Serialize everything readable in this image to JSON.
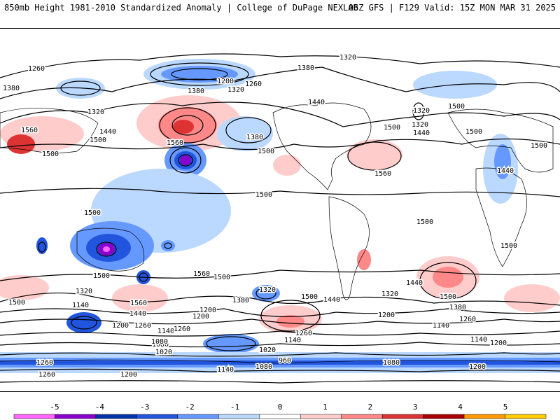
{
  "header": {
    "title": "850mb Height 1981-2010 Standardized Anomaly | College of DuPage NEXLAB",
    "run_info": "06Z GFS | F129 Valid: 15Z MON MAR 31 2025"
  },
  "contour_labels": [
    "1320",
    "1260",
    "1380",
    "1200",
    "1320",
    "1260",
    "1380",
    "1440",
    "1380",
    "1320",
    "1500",
    "1560",
    "1440",
    "1500",
    "1380",
    "1500",
    "1320",
    "1500",
    "1560",
    "1500",
    "1500",
    "1440",
    "1320",
    "1440",
    "1500",
    "1560",
    "1500",
    "1500",
    "1500",
    "1500",
    "1500",
    "1500",
    "1320",
    "1140",
    "1200",
    "1260",
    "1440",
    "1500",
    "1560",
    "1380",
    "1320",
    "1500",
    "1440",
    "1260",
    "1200",
    "1140",
    "1080",
    "1020",
    "960",
    "1080",
    "1140",
    "1200",
    "1260",
    "1320",
    "1380",
    "1440",
    "1500",
    "1560",
    "1200",
    "1140",
    "1260",
    "1200",
    "1080",
    "1140",
    "1200",
    "1260",
    "1140",
    "1080",
    "1020",
    "1260",
    "1200"
  ],
  "colorbar": {
    "labels": [
      "-5",
      "-4",
      "-3",
      "-2",
      "-1",
      "0",
      "1",
      "2",
      "3",
      "4",
      "5"
    ],
    "colors": [
      "#ff66ff",
      "#8800cc",
      "#0033aa",
      "#2255dd",
      "#6699ff",
      "#bbd8ff",
      "#ffffff",
      "#ffcccc",
      "#ff8888",
      "#dd3333",
      "#aa0000",
      "#ff9900",
      "#ffcc00"
    ]
  },
  "icons": {
    "low_marker": "low-center-icon"
  }
}
